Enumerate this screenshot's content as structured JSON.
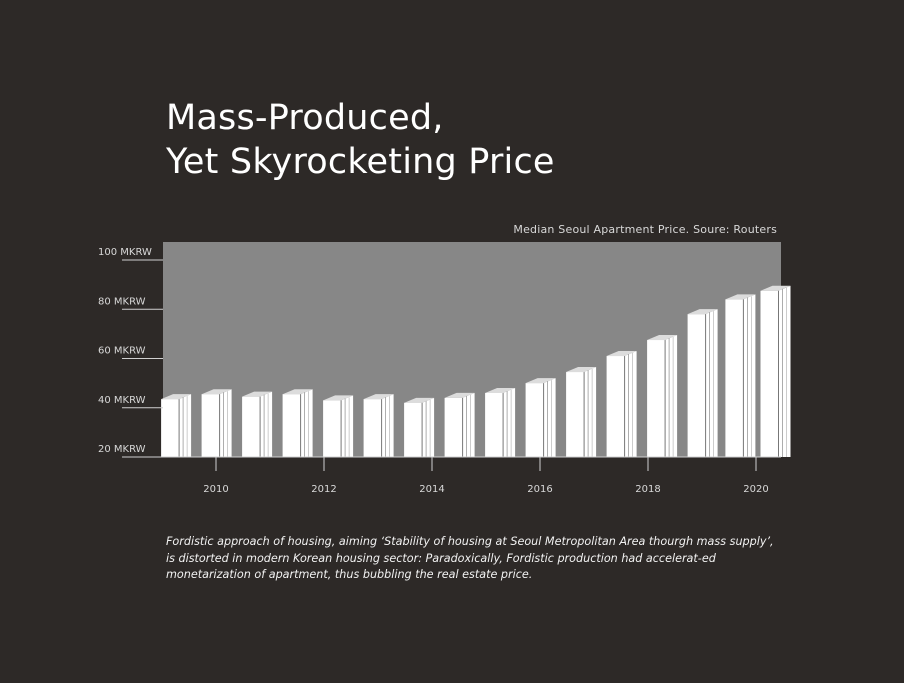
{
  "title": {
    "line1": "Mass-Produced,",
    "line2": "Yet Skyrocketing Price"
  },
  "source_note": "Median Seoul Apartment Price. Soure: Routers",
  "caption": "Fordistic approach of housing, aiming ‘Stability of housing at Seoul Metropolitan Area thourgh mass supply’, is distorted in modern Korean housing sector: Paradoxically, Fordistic production had accelerat-ed monetarization of apartment, thus bubbling the real estate price.",
  "colors": {
    "background": "#2d2927",
    "plot_area": "#878787",
    "bar_front": "#ffffff",
    "bar_top": "#dcdcdc",
    "text": "#ffffff"
  },
  "chart_data": {
    "type": "bar",
    "style": "3d-extruded",
    "y_ticks": [
      {
        "value": 100,
        "label": "100 MKRW"
      },
      {
        "value": 80,
        "label": "80 MKRW"
      },
      {
        "value": 60,
        "label": "60 MKRW"
      },
      {
        "value": 40,
        "label": "40 MKRW"
      },
      {
        "value": 20,
        "label": "20 MKRW"
      }
    ],
    "ylim": [
      20,
      108
    ],
    "x_ticks": [
      {
        "value": 2010,
        "label": "2010"
      },
      {
        "value": 2012,
        "label": "2012"
      },
      {
        "value": 2014,
        "label": "2014"
      },
      {
        "value": 2016,
        "label": "2016"
      },
      {
        "value": 2018,
        "label": "2018"
      },
      {
        "value": 2020,
        "label": "2020"
      }
    ],
    "xlim": [
      2009.0,
      2020.45
    ],
    "series": [
      {
        "x": [
          2009.15,
          2009.9,
          2010.65,
          2011.4,
          2012.15,
          2012.9,
          2013.65,
          2014.4,
          2015.15,
          2015.9,
          2016.65,
          2017.4,
          2018.15,
          2018.9,
          2019.6,
          2020.25
        ],
        "values": [
          43.5,
          45.5,
          44.5,
          45.5,
          43,
          43.5,
          42,
          44,
          46,
          50,
          54.5,
          61,
          67.5,
          78,
          84,
          87.5
        ]
      }
    ]
  }
}
